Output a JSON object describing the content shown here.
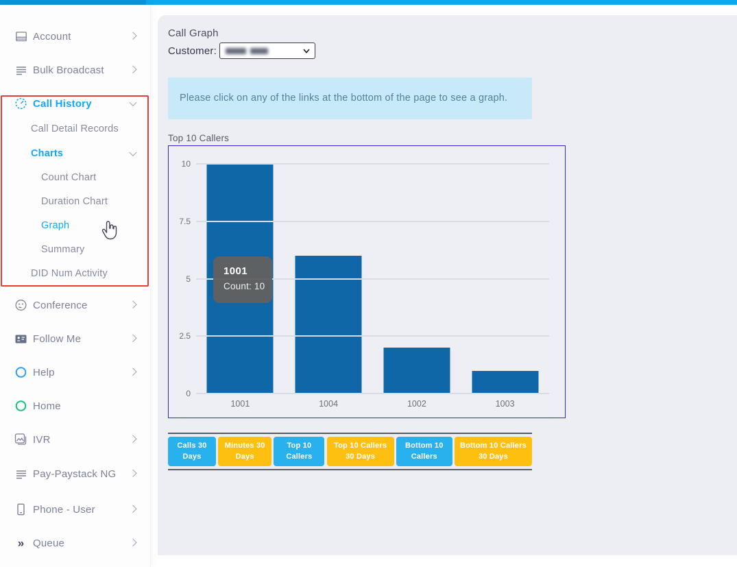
{
  "topbar": {
    "left_color": "#0993dc",
    "right_color": "#07a9f2"
  },
  "sidebar": {
    "active_color": "#14a7f5",
    "highlight_border_color": "#e73d37",
    "items": [
      {
        "label": "Account",
        "icon": "window-lines-icon",
        "chevron": "right"
      },
      {
        "label": "Bulk Broadcast",
        "icon": "text-lines-icon",
        "chevron": "right"
      },
      {
        "label": "Call History",
        "icon": "timer-icon",
        "chevron": "down",
        "active": true
      },
      {
        "label": "Conference",
        "icon": "smiley-icon",
        "chevron": "right"
      },
      {
        "label": "Follow Me",
        "icon": "id-card-icon",
        "chevron": "right"
      },
      {
        "label": "Help",
        "icon": "blue-circle-icon",
        "chevron": "right"
      },
      {
        "label": "Home",
        "icon": "green-circle-icon",
        "chevron": "none"
      },
      {
        "label": "IVR",
        "icon": "photo-icon",
        "chevron": "right"
      },
      {
        "label": "Pay-Paystack NG",
        "icon": "text-lines-icon",
        "chevron": "right"
      },
      {
        "label": "Phone - User",
        "icon": "smartphone-icon",
        "chevron": "right"
      },
      {
        "label": "Queue",
        "icon": "double-chevron-icon",
        "chevron": "right"
      }
    ],
    "call_history_children": [
      {
        "label": "Call Detail Records"
      },
      {
        "label": "Charts",
        "chevron": "down",
        "active": true
      },
      {
        "label": "DID Num Activity"
      }
    ],
    "charts_children": [
      {
        "label": "Count Chart"
      },
      {
        "label": "Duration Chart"
      },
      {
        "label": "Graph",
        "active": true
      },
      {
        "label": "Summary"
      }
    ],
    "icons": {
      "queue_glyph": "»"
    }
  },
  "main": {
    "page_title": "Call Graph",
    "customer_label": "Customer:",
    "customer_value_redacted": true,
    "notice": "Please click on any of the links at the bottom of the page to see a graph.",
    "notice_bg": "#c7e9f8",
    "chart_title": "Top 10 Callers",
    "tooltip": {
      "title": "1001",
      "text": "Count: 10"
    },
    "link_buttons": [
      {
        "label": "Calls 30 Days",
        "color": "#29b1ee"
      },
      {
        "label": "Minutes 30 Days",
        "color": "#fdc011"
      },
      {
        "label": "Top 10 Callers",
        "color": "#29b1ee"
      },
      {
        "label": "Top 10 Callers 30 Days",
        "color": "#fdc011"
      },
      {
        "label": "Bottom 10 Callers",
        "color": "#29b1ee"
      },
      {
        "label": "Bottom 10 Callers 30 Days",
        "color": "#fdc011"
      }
    ]
  },
  "chart_data": {
    "type": "bar",
    "title": "Top 10 Callers",
    "categories": [
      "1001",
      "1004",
      "1002",
      "1003"
    ],
    "values": [
      10,
      6,
      2,
      1
    ],
    "xlabel": "",
    "ylabel": "",
    "ylim": [
      0,
      10
    ],
    "yticks": [
      0,
      2.5,
      5,
      7.5,
      10
    ],
    "grid": true,
    "legend_position": "none",
    "bar_color": "#1067a8",
    "border_color": "#2b2bd0",
    "tooltip": {
      "category": "1001",
      "text": "Count: 10"
    }
  }
}
